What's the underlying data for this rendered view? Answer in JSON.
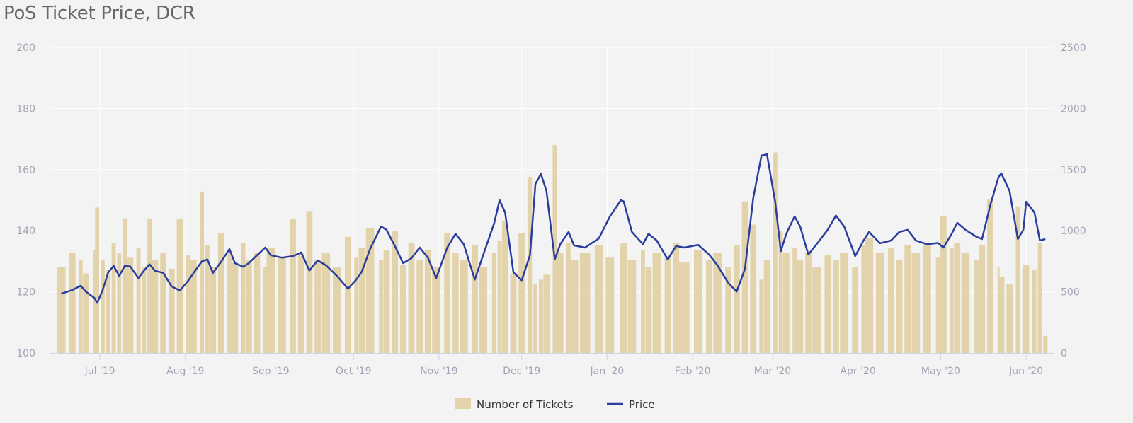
{
  "chart_data": {
    "type": "bar+line",
    "title": "PoS Ticket Price, DCR",
    "x_ticks": [
      "Jul '19",
      "Aug '19",
      "Sep '19",
      "Oct '19",
      "Nov '19",
      "Dec '19",
      "Jan '20",
      "Feb '20",
      "Mar '20",
      "Apr '20",
      "May '20",
      "Jun '20"
    ],
    "x_tick_dates": [
      "2019-07-01",
      "2019-08-01",
      "2019-09-01",
      "2019-10-01",
      "2019-11-01",
      "2019-12-01",
      "2020-01-01",
      "2020-02-01",
      "2020-03-01",
      "2020-04-01",
      "2020-05-01",
      "2020-06-01"
    ],
    "xlim": [
      "2019-06-13",
      "2020-06-11"
    ],
    "y_left": {
      "ylim": [
        100,
        200
      ],
      "ticks": [
        "100",
        "120",
        "140",
        "160",
        "180",
        "200"
      ]
    },
    "y_right": {
      "ylim": [
        0,
        2500
      ],
      "ticks": [
        "0",
        "500",
        "1000",
        "1500",
        "2000",
        "2500"
      ]
    },
    "grid": true,
    "legend_position": "bottom",
    "legend": [
      "Number of Tickets",
      "Price"
    ],
    "colors": {
      "tickets": "#e3d3ab",
      "price": "#2b3d9c",
      "background": "#f3f3f3",
      "grid": "#ffffff",
      "axis": "#ccd6eb"
    },
    "series": [
      {
        "name": "Number of Tickets",
        "type": "bar",
        "axis": "right",
        "points": [
          [
            "2019-06-17",
            700
          ],
          [
            "2019-06-21",
            820
          ],
          [
            "2019-06-24",
            760
          ],
          [
            "2019-06-26",
            650
          ],
          [
            "2019-06-29",
            840
          ],
          [
            "2019-06-30",
            1190
          ],
          [
            "2019-07-02",
            760
          ],
          [
            "2019-07-04",
            680
          ],
          [
            "2019-07-06",
            900
          ],
          [
            "2019-07-08",
            820
          ],
          [
            "2019-07-10",
            1100
          ],
          [
            "2019-07-12",
            780
          ],
          [
            "2019-07-15",
            860
          ],
          [
            "2019-07-17",
            700
          ],
          [
            "2019-07-19",
            1100
          ],
          [
            "2019-07-21",
            760
          ],
          [
            "2019-07-24",
            820
          ],
          [
            "2019-07-27",
            690
          ],
          [
            "2019-07-30",
            1100
          ],
          [
            "2019-08-02",
            800
          ],
          [
            "2019-08-04",
            760
          ],
          [
            "2019-08-07",
            1320
          ],
          [
            "2019-08-09",
            880
          ],
          [
            "2019-08-11",
            700
          ],
          [
            "2019-08-14",
            980
          ],
          [
            "2019-08-17",
            820
          ],
          [
            "2019-08-19",
            740
          ],
          [
            "2019-08-22",
            900
          ],
          [
            "2019-08-24",
            760
          ],
          [
            "2019-08-27",
            820
          ],
          [
            "2019-08-30",
            700
          ],
          [
            "2019-09-01",
            860
          ],
          [
            "2019-09-05",
            780
          ],
          [
            "2019-09-09",
            1100
          ],
          [
            "2019-09-12",
            820
          ],
          [
            "2019-09-15",
            1160
          ],
          [
            "2019-09-18",
            760
          ],
          [
            "2019-09-21",
            820
          ],
          [
            "2019-09-25",
            700
          ],
          [
            "2019-09-29",
            950
          ],
          [
            "2019-10-02",
            780
          ],
          [
            "2019-10-04",
            860
          ],
          [
            "2019-10-07",
            1020
          ],
          [
            "2019-10-11",
            760
          ],
          [
            "2019-10-13",
            840
          ],
          [
            "2019-10-16",
            1000
          ],
          [
            "2019-10-19",
            720
          ],
          [
            "2019-10-22",
            900
          ],
          [
            "2019-10-25",
            760
          ],
          [
            "2019-10-28",
            840
          ],
          [
            "2019-10-31",
            700
          ],
          [
            "2019-11-04",
            980
          ],
          [
            "2019-11-07",
            820
          ],
          [
            "2019-11-10",
            760
          ],
          [
            "2019-11-14",
            880
          ],
          [
            "2019-11-17",
            700
          ],
          [
            "2019-11-21",
            820
          ],
          [
            "2019-11-23",
            920
          ],
          [
            "2019-11-25",
            1080
          ],
          [
            "2019-11-28",
            650
          ],
          [
            "2019-12-01",
            980
          ],
          [
            "2019-12-04",
            1440
          ],
          [
            "2019-12-06",
            560
          ],
          [
            "2019-12-08",
            600
          ],
          [
            "2019-12-10",
            640
          ],
          [
            "2019-12-13",
            1700
          ],
          [
            "2019-12-15",
            820
          ],
          [
            "2019-12-18",
            900
          ],
          [
            "2019-12-20",
            760
          ],
          [
            "2019-12-24",
            820
          ],
          [
            "2019-12-29",
            880
          ],
          [
            "2020-01-02",
            780
          ],
          [
            "2020-01-06",
            860
          ],
          [
            "2020-01-07",
            900
          ],
          [
            "2020-01-10",
            760
          ],
          [
            "2020-01-14",
            840
          ],
          [
            "2020-01-16",
            700
          ],
          [
            "2020-01-19",
            820
          ],
          [
            "2020-01-23",
            780
          ],
          [
            "2020-01-26",
            900
          ],
          [
            "2020-01-29",
            740
          ],
          [
            "2020-02-03",
            840
          ],
          [
            "2020-02-07",
            760
          ],
          [
            "2020-02-10",
            820
          ],
          [
            "2020-02-14",
            700
          ],
          [
            "2020-02-17",
            880
          ],
          [
            "2020-02-20",
            1240
          ],
          [
            "2020-02-23",
            1050
          ],
          [
            "2020-02-26",
            600
          ],
          [
            "2020-02-28",
            760
          ],
          [
            "2020-03-02",
            1640
          ],
          [
            "2020-03-04",
            1000
          ],
          [
            "2020-03-06",
            820
          ],
          [
            "2020-03-09",
            860
          ],
          [
            "2020-03-11",
            760
          ],
          [
            "2020-03-14",
            820
          ],
          [
            "2020-03-17",
            700
          ],
          [
            "2020-03-21",
            800
          ],
          [
            "2020-03-24",
            760
          ],
          [
            "2020-03-27",
            820
          ],
          [
            "2020-03-31",
            700
          ],
          [
            "2020-04-03",
            880
          ],
          [
            "2020-04-05",
            940
          ],
          [
            "2020-04-09",
            820
          ],
          [
            "2020-04-13",
            860
          ],
          [
            "2020-04-16",
            760
          ],
          [
            "2020-04-19",
            880
          ],
          [
            "2020-04-22",
            820
          ],
          [
            "2020-04-26",
            900
          ],
          [
            "2020-04-30",
            780
          ],
          [
            "2020-05-02",
            1120
          ],
          [
            "2020-05-05",
            860
          ],
          [
            "2020-05-07",
            900
          ],
          [
            "2020-05-10",
            820
          ],
          [
            "2020-05-14",
            760
          ],
          [
            "2020-05-16",
            880
          ],
          [
            "2020-05-19",
            1255
          ],
          [
            "2020-05-22",
            700
          ],
          [
            "2020-05-23",
            620
          ],
          [
            "2020-05-26",
            560
          ],
          [
            "2020-05-29",
            1200
          ],
          [
            "2020-05-31",
            680
          ],
          [
            "2020-06-01",
            720
          ],
          [
            "2020-06-04",
            680
          ],
          [
            "2020-06-06",
            900
          ],
          [
            "2020-06-08",
            140
          ]
        ]
      },
      {
        "name": "Price",
        "type": "line",
        "axis": "left",
        "points": [
          [
            "2019-06-17",
            119.4
          ],
          [
            "2019-06-21",
            120.6
          ],
          [
            "2019-06-24",
            122
          ],
          [
            "2019-06-26",
            120
          ],
          [
            "2019-06-29",
            118
          ],
          [
            "2019-06-30",
            116.4
          ],
          [
            "2019-07-02",
            120.6
          ],
          [
            "2019-07-04",
            126.4
          ],
          [
            "2019-07-06",
            128.5
          ],
          [
            "2019-07-08",
            125.2
          ],
          [
            "2019-07-10",
            128.5
          ],
          [
            "2019-07-12",
            128.3
          ],
          [
            "2019-07-15",
            124.5
          ],
          [
            "2019-07-17",
            127
          ],
          [
            "2019-07-19",
            129
          ],
          [
            "2019-07-21",
            126.9
          ],
          [
            "2019-07-24",
            126.2
          ],
          [
            "2019-07-27",
            121.8
          ],
          [
            "2019-07-30",
            120.4
          ],
          [
            "2019-08-02",
            123.6
          ],
          [
            "2019-08-04",
            126.2
          ],
          [
            "2019-08-07",
            130
          ],
          [
            "2019-08-09",
            130.6
          ],
          [
            "2019-08-11",
            126.2
          ],
          [
            "2019-08-14",
            129.9
          ],
          [
            "2019-08-17",
            134
          ],
          [
            "2019-08-19",
            129.4
          ],
          [
            "2019-08-22",
            128.2
          ],
          [
            "2019-08-24",
            129.4
          ],
          [
            "2019-08-27",
            132
          ],
          [
            "2019-08-30",
            134.5
          ],
          [
            "2019-09-01",
            132
          ],
          [
            "2019-09-05",
            131.2
          ],
          [
            "2019-09-09",
            131.7
          ],
          [
            "2019-09-12",
            132.9
          ],
          [
            "2019-09-15",
            127
          ],
          [
            "2019-09-18",
            130.3
          ],
          [
            "2019-09-21",
            128.7
          ],
          [
            "2019-09-25",
            125.2
          ],
          [
            "2019-09-29",
            121
          ],
          [
            "2019-10-02",
            124
          ],
          [
            "2019-10-04",
            126.6
          ],
          [
            "2019-10-07",
            134
          ],
          [
            "2019-10-11",
            141.4
          ],
          [
            "2019-10-13",
            140.3
          ],
          [
            "2019-10-16",
            135
          ],
          [
            "2019-10-19",
            129.4
          ],
          [
            "2019-10-22",
            131
          ],
          [
            "2019-10-25",
            134.5
          ],
          [
            "2019-10-28",
            131.2
          ],
          [
            "2019-10-31",
            124.5
          ],
          [
            "2019-11-04",
            134.5
          ],
          [
            "2019-11-07",
            139
          ],
          [
            "2019-11-10",
            135.6
          ],
          [
            "2019-11-14",
            124
          ],
          [
            "2019-11-17",
            132
          ],
          [
            "2019-11-21",
            142.4
          ],
          [
            "2019-11-23",
            150
          ],
          [
            "2019-11-25",
            146
          ],
          [
            "2019-11-28",
            126.4
          ],
          [
            "2019-12-01",
            123.8
          ],
          [
            "2019-12-04",
            132
          ],
          [
            "2019-12-06",
            155.3
          ],
          [
            "2019-12-08",
            158.6
          ],
          [
            "2019-12-10",
            153
          ],
          [
            "2019-12-13",
            130.6
          ],
          [
            "2019-12-15",
            135.6
          ],
          [
            "2019-12-18",
            139.6
          ],
          [
            "2019-12-20",
            135.2
          ],
          [
            "2019-12-24",
            134.5
          ],
          [
            "2019-12-29",
            137.5
          ],
          [
            "2020-01-02",
            144.7
          ],
          [
            "2020-01-06",
            150
          ],
          [
            "2020-01-07",
            149.6
          ],
          [
            "2020-01-10",
            139.6
          ],
          [
            "2020-01-14",
            135.6
          ],
          [
            "2020-01-16",
            139
          ],
          [
            "2020-01-19",
            136.8
          ],
          [
            "2020-01-23",
            130.6
          ],
          [
            "2020-01-26",
            135
          ],
          [
            "2020-01-29",
            134.5
          ],
          [
            "2020-02-03",
            135.4
          ],
          [
            "2020-02-07",
            132.2
          ],
          [
            "2020-02-10",
            128.7
          ],
          [
            "2020-02-14",
            122.9
          ],
          [
            "2020-02-17",
            120.1
          ],
          [
            "2020-02-20",
            127.5
          ],
          [
            "2020-02-23",
            150.7
          ],
          [
            "2020-02-26",
            164.6
          ],
          [
            "2020-02-28",
            165
          ],
          [
            "2020-03-02",
            149.3
          ],
          [
            "2020-03-04",
            133.3
          ],
          [
            "2020-03-06",
            139
          ],
          [
            "2020-03-09",
            144.7
          ],
          [
            "2020-03-11",
            141.4
          ],
          [
            "2020-03-14",
            132.2
          ],
          [
            "2020-03-17",
            135.6
          ],
          [
            "2020-03-21",
            140.3
          ],
          [
            "2020-03-24",
            145
          ],
          [
            "2020-03-27",
            141.4
          ],
          [
            "2020-03-31",
            131.7
          ],
          [
            "2020-04-03",
            136.8
          ],
          [
            "2020-04-05",
            139.6
          ],
          [
            "2020-04-09",
            135.9
          ],
          [
            "2020-04-13",
            136.8
          ],
          [
            "2020-04-16",
            139.6
          ],
          [
            "2020-04-19",
            140.3
          ],
          [
            "2020-04-22",
            136.8
          ],
          [
            "2020-04-26",
            135.6
          ],
          [
            "2020-04-30",
            136
          ],
          [
            "2020-05-02",
            134.5
          ],
          [
            "2020-05-05",
            139
          ],
          [
            "2020-05-07",
            142.6
          ],
          [
            "2020-05-10",
            140.3
          ],
          [
            "2020-05-14",
            138
          ],
          [
            "2020-05-16",
            137.3
          ],
          [
            "2020-05-19",
            148.4
          ],
          [
            "2020-05-22",
            157.6
          ],
          [
            "2020-05-23",
            158.8
          ],
          [
            "2020-05-26",
            153
          ],
          [
            "2020-05-29",
            137.3
          ],
          [
            "2020-05-31",
            140.3
          ],
          [
            "2020-06-01",
            149.5
          ],
          [
            "2020-06-04",
            146
          ],
          [
            "2020-06-06",
            136.8
          ],
          [
            "2020-06-08",
            137.3
          ]
        ]
      }
    ]
  }
}
